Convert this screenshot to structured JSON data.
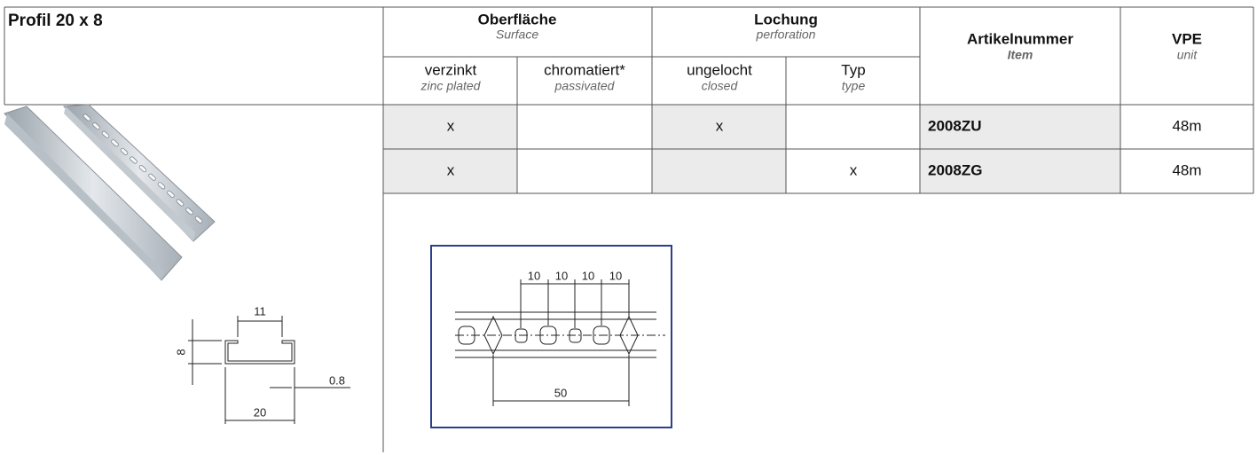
{
  "header": {
    "title": "Profil 20 x 8"
  },
  "table": {
    "groups": [
      {
        "label": "Oberfläche",
        "sublabel": "Surface"
      },
      {
        "label": "Lochung",
        "sublabel": "perforation"
      },
      {
        "label": "Artikelnummer",
        "sublabel": "Item"
      },
      {
        "label": "VPE",
        "sublabel": "unit"
      }
    ],
    "subcolumns": [
      {
        "label": "verzinkt",
        "sublabel": "zinc plated"
      },
      {
        "label": "chromatiert*",
        "sublabel": "passivated"
      },
      {
        "label": "ungelocht",
        "sublabel": "closed"
      },
      {
        "label": "Typ",
        "sublabel": "type"
      }
    ],
    "rows": [
      [
        "x",
        null,
        "x",
        null,
        "2008ZU",
        "48m"
      ],
      [
        "x",
        null,
        null,
        "x",
        "2008ZG",
        "48m"
      ]
    ]
  },
  "drawings": {
    "profile_dimensions": [
      "11",
      "8",
      "0.8",
      "20"
    ],
    "perforation_dimensions": [
      "10",
      "10",
      "10",
      "10",
      "50"
    ]
  }
}
